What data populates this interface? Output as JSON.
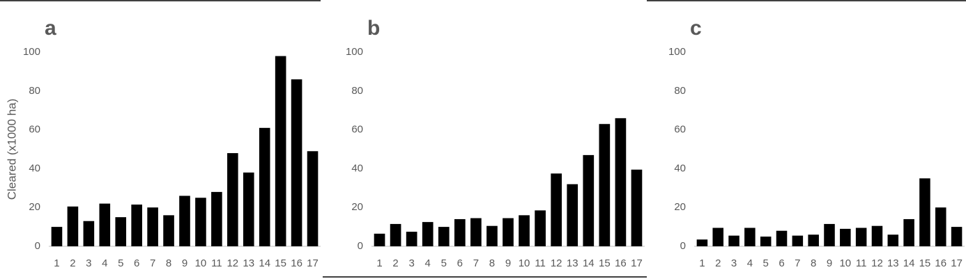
{
  "chart_data": [
    {
      "type": "bar",
      "title": "a",
      "y_label": "Cleared (x1000 ha)",
      "categories": [
        "1",
        "2",
        "3",
        "4",
        "5",
        "6",
        "7",
        "8",
        "9",
        "10",
        "11",
        "12",
        "13",
        "14",
        "15",
        "16",
        "17"
      ],
      "values": [
        10,
        20.5,
        13,
        22,
        15,
        21.5,
        20,
        16,
        26,
        25,
        28,
        48,
        38,
        61,
        98,
        86,
        49
      ],
      "color": "#000000",
      "ylim": [
        0,
        100
      ],
      "yticks": [
        0,
        20,
        40,
        60,
        80,
        100
      ]
    },
    {
      "type": "bar",
      "title": "b",
      "categories": [
        "1",
        "2",
        "3",
        "4",
        "5",
        "6",
        "7",
        "8",
        "9",
        "10",
        "11",
        "12",
        "13",
        "14",
        "15",
        "16",
        "17"
      ],
      "values": [
        6.5,
        11.5,
        7.5,
        12.5,
        10,
        14,
        14.5,
        10.5,
        14.5,
        16,
        18.5,
        37.5,
        32,
        47,
        63,
        66,
        39.5
      ],
      "color": "#000000",
      "ylim": [
        0,
        100
      ],
      "yticks": [
        0,
        20,
        40,
        60,
        80,
        100
      ]
    },
    {
      "type": "bar",
      "title": "c",
      "categories": [
        "1",
        "2",
        "3",
        "4",
        "5",
        "6",
        "7",
        "8",
        "9",
        "10",
        "11",
        "12",
        "13",
        "14",
        "15",
        "16",
        "17"
      ],
      "values": [
        3.5,
        9.5,
        5.5,
        9.5,
        5,
        8,
        5.5,
        6,
        11.5,
        9,
        9.5,
        10.5,
        6,
        14,
        35,
        20,
        10
      ],
      "color": "#000000",
      "ylim": [
        0,
        100
      ],
      "yticks": [
        0,
        20,
        40,
        60,
        80,
        100
      ]
    }
  ]
}
